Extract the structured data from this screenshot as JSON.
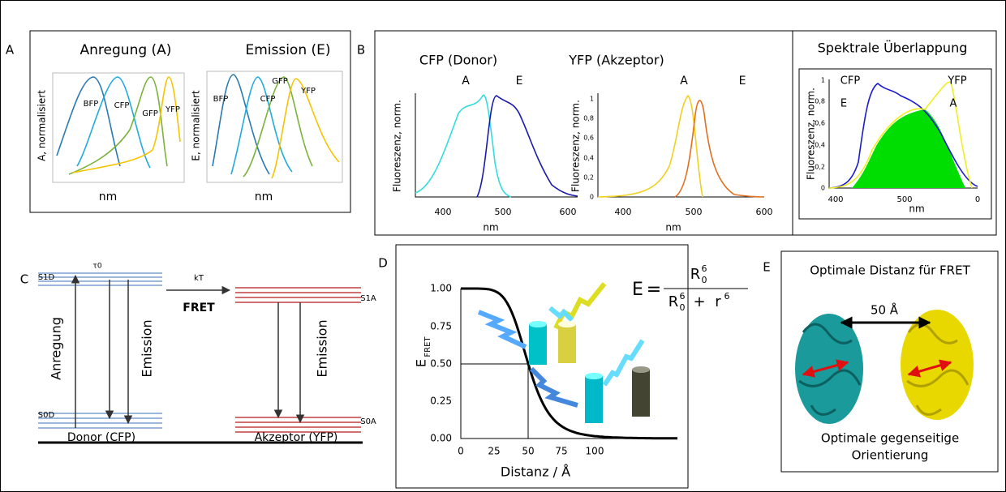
{
  "panel_a": {
    "label": "A",
    "excitation": {
      "title": "Anregung (A)",
      "y_label": "A, normalisiert",
      "x_label": "nm",
      "curves": [
        "BFP",
        "CFP",
        "GFP",
        "YFP"
      ]
    },
    "emission": {
      "title": "Emission (E)",
      "y_label": "E, normalisiert",
      "x_label": "nm",
      "curves": [
        "BFP",
        "CFP",
        "GFP",
        "YFP"
      ]
    }
  },
  "panel_b": {
    "label": "B",
    "donor": {
      "title": "CFP (Donor)",
      "y_label": "Fluoreszenz, norm.",
      "x_label": "nm",
      "x_ticks": [
        "400",
        "500",
        "600"
      ],
      "curves": [
        "A",
        "E"
      ]
    },
    "acceptor": {
      "title": "YFP (Akzeptor)",
      "y_label": "Fluoreszenz, norm.",
      "x_label": "nm",
      "x_ticks": [
        "400",
        "500",
        "600"
      ],
      "y_ticks": [
        "0",
        "0,2",
        "0,4",
        "0,6",
        "0,8",
        "1"
      ],
      "curves": [
        "A",
        "E"
      ]
    },
    "overlap": {
      "title": "Spektrale Überlappung",
      "y_label": "Fluoreszenz, norm.",
      "x_label": "nm",
      "x_ticks": [
        "400",
        "500",
        "0"
      ],
      "y_ticks": [
        "0",
        "0,2",
        "0,4",
        "0,6",
        "0,8",
        "1"
      ],
      "curves": [
        "CFP",
        "YFP",
        "E",
        "A"
      ]
    }
  },
  "panel_c": {
    "label": "C",
    "states": [
      "S1D",
      "S0D",
      "S1A",
      "S0A"
    ],
    "tau": "τ0",
    "rate": "kT",
    "transfer": "FRET",
    "excitation": "Anregung",
    "emission": "Emission",
    "donor": "Donor (CFP)",
    "acceptor": "Akzeptor (YFP)"
  },
  "panel_d": {
    "label": "D",
    "formula": {
      "lhs": "E",
      "equals": "=",
      "radius": "R",
      "radius_sub": "0",
      "power": "6",
      "plus": "+",
      "distance": "r"
    },
    "y_label": {
      "main": "E",
      "sub": "FRET"
    },
    "x_label": "Distanz / Å",
    "x_ticks": [
      "0",
      "25",
      "50",
      "75",
      "100"
    ],
    "y_ticks": [
      "1.00",
      "0.75",
      "0.50",
      "0.25",
      "0.00"
    ]
  },
  "panel_e": {
    "label": "E",
    "title": "Optimale Distanz für FRET",
    "distance": "50 Å",
    "caption": [
      "Optimale gegenseitige",
      "Orientierung"
    ]
  }
}
